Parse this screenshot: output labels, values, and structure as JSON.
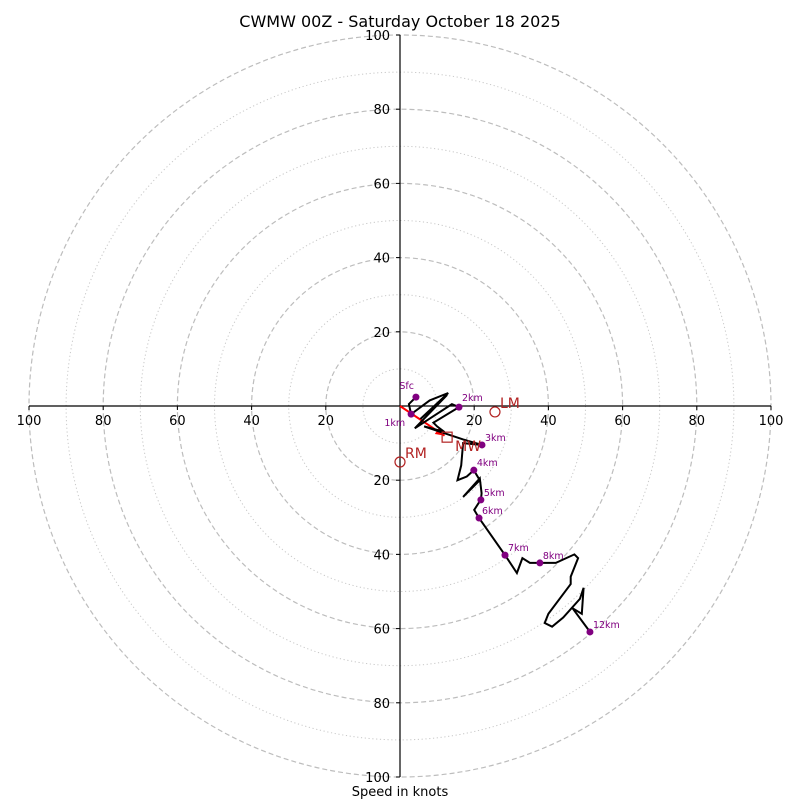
{
  "chart_data": {
    "type": "hodograph",
    "title": "CWMW 00Z - Saturday October 18 2025",
    "xlabel": "Speed in knots",
    "axis_range": [
      -100,
      100
    ],
    "ticks": [
      100,
      80,
      60,
      40,
      20
    ],
    "grid": {
      "major_rings": [
        20,
        40,
        60,
        80,
        100
      ],
      "minor_rings": [
        10,
        30,
        50,
        70,
        90
      ],
      "major_style": "dashed",
      "minor_style": "dotted"
    },
    "hodograph_path": {
      "name": "wind-profile",
      "color": "#000000",
      "u": [
        4.3,
        2.4,
        3.0,
        8.0,
        13.0,
        5.5,
        12.7,
        4.0,
        14.0,
        15.9,
        9.0,
        10.0,
        12.0,
        6.5,
        17.0,
        22.1,
        17.0,
        16.5,
        15.5,
        18.0,
        19.9,
        21.5,
        17.0,
        21.5,
        22.0,
        21.8,
        21.3,
        20.0,
        21.3,
        28.3,
        31.5,
        33.0,
        35.0,
        37.7,
        42.0,
        47.0,
        48.0,
        46.0,
        46.0,
        40.0,
        39.0,
        41.0,
        44.0,
        48.5,
        49.5,
        49.0,
        46.5,
        51.2
      ],
      "v": [
        2.4,
        0.5,
        -2.2,
        1.5,
        3.5,
        -3.5,
        3.0,
        -6.0,
        0.5,
        -0.3,
        -4.5,
        -5.5,
        -7.0,
        -5.5,
        -9.0,
        -10.5,
        -10.0,
        -16.0,
        -20.0,
        -19.0,
        -17.3,
        -20.0,
        -24.5,
        -19.5,
        -23.5,
        -25.3,
        -26.0,
        -28.0,
        -30.2,
        -40.2,
        -45.0,
        -41.0,
        -42.3,
        -42.3,
        -42.3,
        -40.0,
        -41.0,
        -46.0,
        -48.0,
        -56.0,
        -58.5,
        -59.5,
        -57.0,
        -52.0,
        -49.0,
        -56.0,
        -54.5,
        -60.9
      ]
    },
    "height_markers": [
      {
        "label": "Sfc",
        "u": 4.3,
        "v": 2.4
      },
      {
        "label": "1km",
        "u": 3.0,
        "v": -2.2
      },
      {
        "label": "2km",
        "u": 15.9,
        "v": -0.3
      },
      {
        "label": "3km",
        "u": 22.1,
        "v": -10.5
      },
      {
        "label": "4km",
        "u": 19.9,
        "v": -17.3
      },
      {
        "label": "5km",
        "u": 21.8,
        "v": -25.3
      },
      {
        "label": "6km",
        "u": 21.3,
        "v": -30.2
      },
      {
        "label": "7km",
        "u": 28.3,
        "v": -40.2
      },
      {
        "label": "8km",
        "u": 37.7,
        "v": -42.3
      },
      {
        "label": "12km",
        "u": 51.2,
        "v": -60.9
      }
    ],
    "marker_color": "#800080",
    "storm_motion": [
      {
        "label": "LM",
        "u": 25.6,
        "v": -1.6,
        "shape": "circle"
      },
      {
        "label": "RM",
        "u": 0.0,
        "v": -15.1,
        "shape": "circle"
      },
      {
        "label": "MW",
        "u": 12.7,
        "v": -8.4,
        "shape": "square"
      }
    ],
    "storm_color": "#b22222",
    "shear_vector": {
      "from_u": 0.0,
      "from_v": 0.0,
      "to_u": 12.0,
      "to_v": -8.0,
      "color": "#ff0000"
    }
  }
}
